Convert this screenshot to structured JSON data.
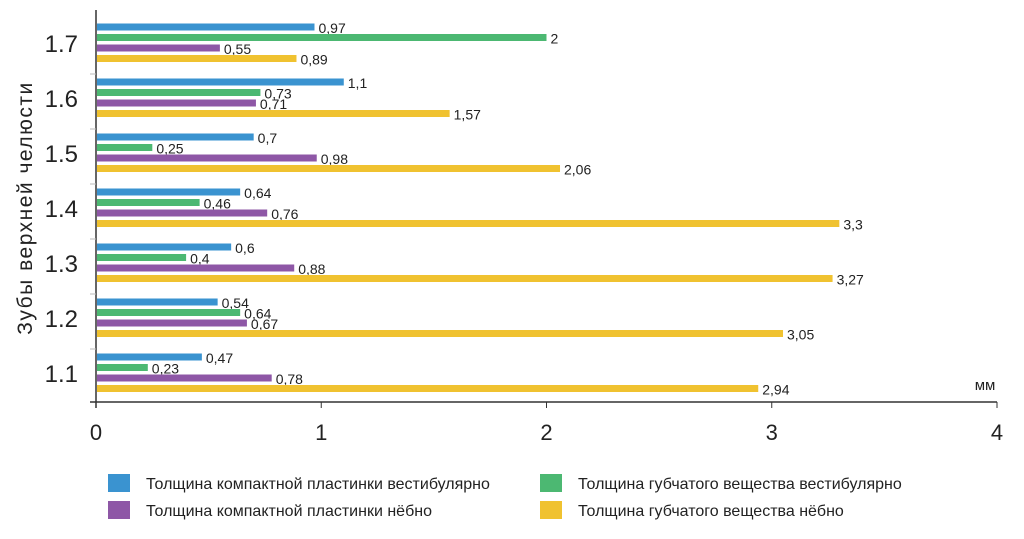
{
  "chart_data": {
    "type": "bar",
    "orientation": "horizontal",
    "ylabel": "Зубы верхней челюсти",
    "xlabel": "мм",
    "xlim": [
      0,
      4
    ],
    "xticks": [
      "0",
      "1",
      "2",
      "3",
      "4"
    ],
    "categories": [
      "1.7",
      "1.6",
      "1.5",
      "1.4",
      "1.3",
      "1.2",
      "1.1"
    ],
    "series": [
      {
        "name": "Толщина компактной пластинки вестибулярно",
        "color": "#3a93d0",
        "values": [
          0.97,
          1.1,
          0.7,
          0.64,
          0.6,
          0.54,
          0.47
        ],
        "labels": [
          "0,97",
          "1,1",
          "0,7",
          "0,64",
          "0,6",
          "0,54",
          "0,47"
        ]
      },
      {
        "name": "Толщина губчатого вещества вестибулярно",
        "color": "#4cb872",
        "values": [
          2,
          0.73,
          0.25,
          0.46,
          0.4,
          0.64,
          0.23
        ],
        "labels": [
          "2",
          "0,73",
          "0,25",
          "0,46",
          "0,4",
          "0,64",
          "0,23"
        ]
      },
      {
        "name": "Толщина компактной пластинки нёбно",
        "color": "#8e57a6",
        "values": [
          0.55,
          0.71,
          0.98,
          0.76,
          0.88,
          0.67,
          0.78
        ],
        "labels": [
          "0,55",
          "0,71",
          "0,98",
          "0,76",
          "0,88",
          "0,67",
          "0,78"
        ]
      },
      {
        "name": "Толщина губчатого вещества нёбно",
        "color": "#f0c230",
        "values": [
          0.89,
          1.57,
          2.06,
          3.3,
          3.27,
          3.05,
          2.94
        ],
        "labels": [
          "0,89",
          "1,57",
          "2,06",
          "3,3",
          "3,27",
          "3,05",
          "2,94"
        ]
      }
    ],
    "legend_position": "bottom",
    "grid": false
  }
}
